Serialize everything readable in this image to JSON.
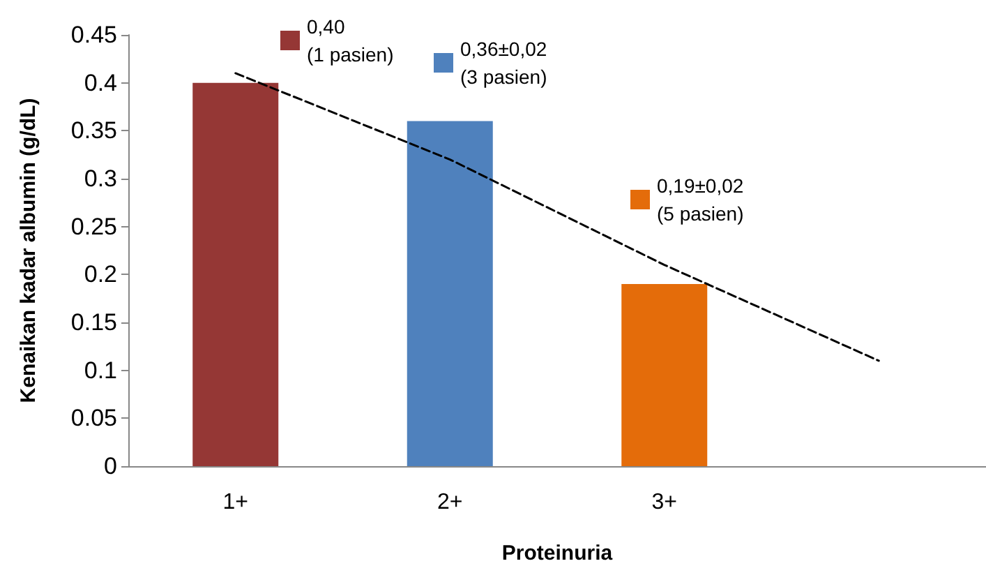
{
  "chart_data": {
    "type": "bar",
    "xlabel": "Proteinuria",
    "ylabel": "Kenaikan kadar albumin (g/dL)",
    "categories": [
      "1+",
      "2+",
      "3+",
      null
    ],
    "series": [
      {
        "name": "0,40\n(1 pasien)",
        "color": "#953735",
        "values": [
          0.4,
          null,
          null,
          null
        ]
      },
      {
        "name": "0,36±0,02\n(3 pasien)",
        "color": "#4f81bd",
        "values": [
          null,
          0.36,
          null,
          null
        ]
      },
      {
        "name": "0,19±0,02\n(5 pasien)",
        "color": "#e46c0a",
        "values": [
          null,
          null,
          0.19,
          null
        ]
      },
      {
        "type": "line",
        "color": "#000000",
        "line_style": "dashed",
        "marker": "none",
        "values": [
          0.41,
          0.32,
          0.21,
          0.11
        ]
      }
    ],
    "ylim": [
      0,
      0.45
    ],
    "yticks": [
      0,
      0.05,
      0.1,
      0.15,
      0.2,
      0.25,
      0.3,
      0.35,
      0.4,
      0.45
    ],
    "grid": false,
    "legend": "top"
  }
}
